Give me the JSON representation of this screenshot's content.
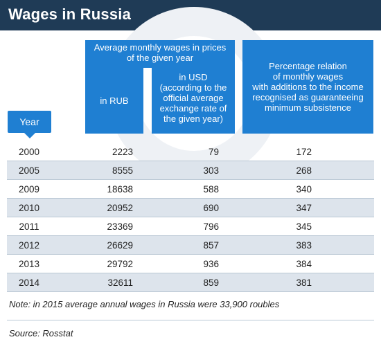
{
  "title": "Wages in Russia",
  "headers": {
    "year": "Year",
    "avg_wages_line1": "Average monthly wages in prices",
    "avg_wages_line2": "of the given year",
    "rub": "in RUB",
    "usd_line1": "in USD",
    "usd_line2": "(according to the",
    "usd_line3": "official average",
    "usd_line4": "exchange rate of",
    "usd_line5": "the given year)",
    "pct_line1": "Percentage relation",
    "pct_line2": "of monthly wages",
    "pct_line3": "with additions to the income",
    "pct_line4": "recognised as guaranteeing",
    "pct_line5": "minimum subsistence"
  },
  "rows": [
    {
      "year": "2000",
      "rub": "2223",
      "usd": "79",
      "pct": "172"
    },
    {
      "year": "2005",
      "rub": "8555",
      "usd": "303",
      "pct": "268"
    },
    {
      "year": "2009",
      "rub": "18638",
      "usd": "588",
      "pct": "340"
    },
    {
      "year": "2010",
      "rub": "20952",
      "usd": "690",
      "pct": "347"
    },
    {
      "year": "2011",
      "rub": "23369",
      "usd": "796",
      "pct": "345"
    },
    {
      "year": "2012",
      "rub": "26629",
      "usd": "857",
      "pct": "383"
    },
    {
      "year": "2013",
      "rub": "29792",
      "usd": "936",
      "pct": "384"
    },
    {
      "year": "2014",
      "rub": "32611",
      "usd": "859",
      "pct": "381"
    }
  ],
  "note": "Note: in 2015 average annual wages in Russia were 33,900 roubles",
  "source": "Source: Rosstat",
  "colors": {
    "title_bar": "#1f3b56",
    "header_blue": "#1f7fd2",
    "alt_row": "#dde4ec"
  }
}
